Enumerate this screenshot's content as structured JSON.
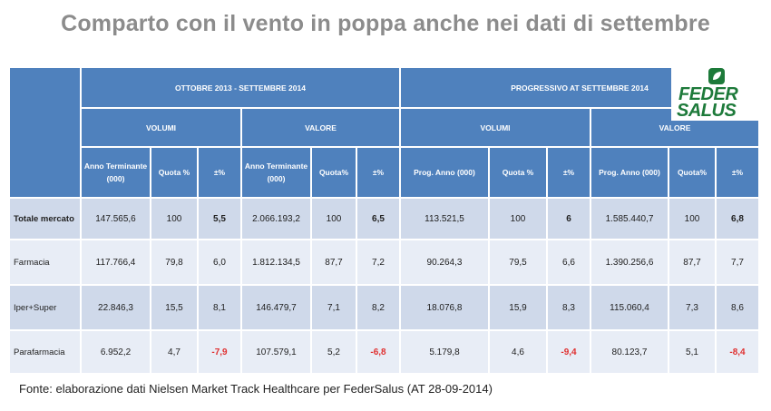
{
  "title": "Comparto con il vento in poppa anche nei dati di settembre",
  "header": {
    "period1": "OTTOBRE 2013 -  SETTEMBRE 2014",
    "period2": "PROGRESSIVO AT SETTEMBRE 2014",
    "volumi": "VOLUMI",
    "valore": "VALORE",
    "cols": [
      "Anno Terminante (000)",
      "Quota %",
      "±%",
      "Anno Terminante (000)",
      "Quota%",
      "±%",
      "Prog. Anno (000)",
      "Quota %",
      "±%",
      "Prog. Anno (000)",
      "Quota%",
      "±%"
    ]
  },
  "rows": [
    {
      "label": "Totale mercato",
      "cells": [
        "147.565,6",
        "100",
        "5,5",
        "2.066.193,2",
        "100",
        "6,5",
        "113.521,5",
        "100",
        "6",
        "1.585.440,7",
        "100",
        "6,8"
      ]
    },
    {
      "label": "Farmacia",
      "cells": [
        "117.766,4",
        "79,8",
        "6,0",
        "1.812.134,5",
        "87,7",
        "7,2",
        "90.264,3",
        "79,5",
        "6,6",
        "1.390.256,6",
        "87,7",
        "7,7"
      ]
    },
    {
      "label": "Iper+Super",
      "cells": [
        "22.846,3",
        "15,5",
        "8,1",
        "146.479,7",
        "7,1",
        "8,2",
        "18.076,8",
        "15,9",
        "8,3",
        "115.060,4",
        "7,3",
        "8,6"
      ]
    },
    {
      "label": "Parafarmacia",
      "cells": [
        "6.952,2",
        "4,7",
        "-7,9",
        "107.579,1",
        "5,2",
        "-6,8",
        "5.179,8",
        "4,6",
        "-9,4",
        "80.123,7",
        "5,1",
        "-8,4"
      ]
    }
  ],
  "logo": {
    "line1": "FEDER",
    "line2": "SALUS"
  },
  "source": "Fonte: elaborazione dati Nielsen Market Track Healthcare per FederSalus (AT 28-09-2014)",
  "colors": {
    "header": "#4f81bd",
    "row_dark": "#cfd9ea",
    "row_light": "#e8edf6",
    "negative": "#e03030",
    "logo": "#1d7a3a"
  }
}
